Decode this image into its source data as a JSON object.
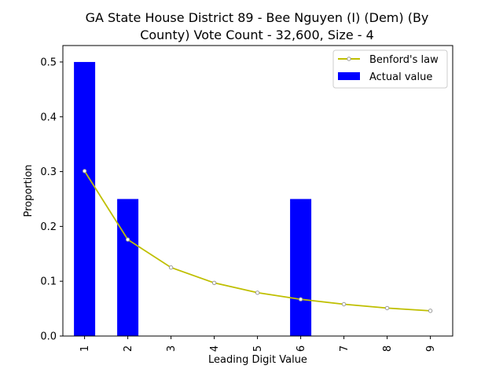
{
  "chart_data": {
    "type": "bar",
    "title_lines": [
      "GA State House District 89 - Bee Nguyen (I) (Dem) (By",
      "County) Vote Count - 32,600, Size - 4"
    ],
    "xlabel": "Leading Digit Value",
    "ylabel": "Proportion",
    "categories": [
      "1",
      "2",
      "3",
      "4",
      "5",
      "6",
      "7",
      "8",
      "9"
    ],
    "ylim": [
      0,
      0.53
    ],
    "yticks": [
      0.0,
      0.1,
      0.2,
      0.3,
      0.4,
      0.5
    ],
    "ytick_labels": [
      "0.0",
      "0.1",
      "0.2",
      "0.3",
      "0.4",
      "0.5"
    ],
    "grid": false,
    "legend_position": "top-right",
    "series": [
      {
        "name": "Benford's law",
        "kind": "line",
        "color": "#bfbf00",
        "marker_color": "#999999",
        "values": [
          0.301,
          0.176,
          0.125,
          0.097,
          0.079,
          0.067,
          0.058,
          0.051,
          0.046
        ]
      },
      {
        "name": "Actual value",
        "kind": "bar",
        "color": "#0000ff",
        "values": [
          0.5,
          0.25,
          0,
          0,
          0,
          0.25,
          0,
          0,
          0
        ]
      }
    ]
  }
}
